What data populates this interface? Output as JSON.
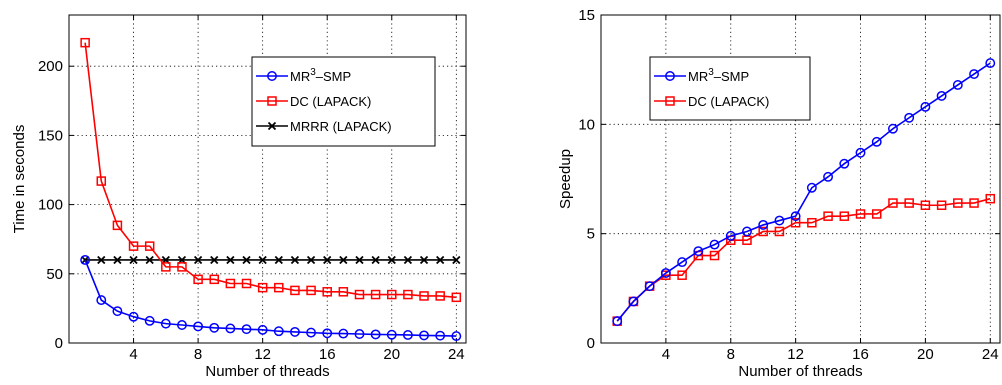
{
  "chart_data": [
    {
      "type": "line",
      "title": "",
      "xlabel": "Number of threads",
      "ylabel": "Time in seconds",
      "xlim": [
        0,
        24.6
      ],
      "ylim": [
        0,
        237
      ],
      "xticks": [
        "4",
        "8",
        "12",
        "16",
        "20",
        "24"
      ],
      "xtick_values": [
        4,
        8,
        12,
        16,
        20,
        24
      ],
      "yticks": [
        "0",
        "50",
        "100",
        "150",
        "200"
      ],
      "ytick_values": [
        0,
        50,
        100,
        150,
        200
      ],
      "grid": true,
      "legend_position": "upper-right",
      "x": [
        1,
        2,
        3,
        4,
        5,
        6,
        7,
        8,
        9,
        10,
        11,
        12,
        13,
        14,
        15,
        16,
        17,
        18,
        19,
        20,
        21,
        22,
        23,
        24
      ],
      "series": [
        {
          "name": "MR3-SMP",
          "label_base": "MR",
          "label_sup": "3",
          "label_tail": "–SMP",
          "color": "#0000ff",
          "marker": "circle",
          "values": [
            60,
            31,
            23,
            19,
            16,
            14,
            13,
            12,
            11,
            10.5,
            10,
            9.5,
            8.5,
            8,
            7.5,
            7,
            6.8,
            6.5,
            6.2,
            6,
            5.8,
            5.5,
            5.3,
            5
          ]
        },
        {
          "name": "DC (LAPACK)",
          "color": "#ff0000",
          "marker": "square",
          "values": [
            217,
            117,
            85,
            70,
            70,
            55,
            55,
            46,
            46,
            43,
            43,
            40,
            40,
            38,
            38,
            37,
            37,
            35,
            35,
            35,
            35,
            34,
            34,
            33
          ]
        },
        {
          "name": "MRRR (LAPACK)",
          "color": "#000000",
          "marker": "x",
          "values": [
            60,
            60,
            60,
            60,
            60,
            60,
            60,
            60,
            60,
            60,
            60,
            60,
            60,
            60,
            60,
            60,
            60,
            60,
            60,
            60,
            60,
            60,
            60,
            60
          ]
        }
      ]
    },
    {
      "type": "line",
      "title": "",
      "xlabel": "Number of threads",
      "ylabel": "Speedup",
      "xlim": [
        0,
        24.6
      ],
      "ylim": [
        0,
        15
      ],
      "xticks": [
        "4",
        "8",
        "12",
        "16",
        "20",
        "24"
      ],
      "xtick_values": [
        4,
        8,
        12,
        16,
        20,
        24
      ],
      "yticks": [
        "0",
        "5",
        "10",
        "15"
      ],
      "ytick_values": [
        0,
        5,
        10,
        15
      ],
      "grid": true,
      "legend_position": "upper-left",
      "x": [
        1,
        2,
        3,
        4,
        5,
        6,
        7,
        8,
        9,
        10,
        11,
        12,
        13,
        14,
        15,
        16,
        17,
        18,
        19,
        20,
        21,
        22,
        23,
        24
      ],
      "series": [
        {
          "name": "MR3-SMP",
          "label_base": "MR",
          "label_sup": "3",
          "label_tail": "–SMP",
          "color": "#0000ff",
          "marker": "circle",
          "values": [
            1,
            1.9,
            2.6,
            3.2,
            3.7,
            4.2,
            4.5,
            4.9,
            5.1,
            5.4,
            5.6,
            5.8,
            7.1,
            7.6,
            8.2,
            8.7,
            9.2,
            9.8,
            10.3,
            10.8,
            11.3,
            11.8,
            12.3,
            12.8
          ]
        },
        {
          "name": "DC (LAPACK)",
          "color": "#ff0000",
          "marker": "square",
          "values": [
            1,
            1.9,
            2.6,
            3.1,
            3.1,
            4.0,
            4.0,
            4.7,
            4.7,
            5.1,
            5.1,
            5.5,
            5.5,
            5.8,
            5.8,
            5.9,
            5.9,
            6.4,
            6.4,
            6.3,
            6.3,
            6.4,
            6.4,
            6.6
          ]
        }
      ]
    }
  ]
}
